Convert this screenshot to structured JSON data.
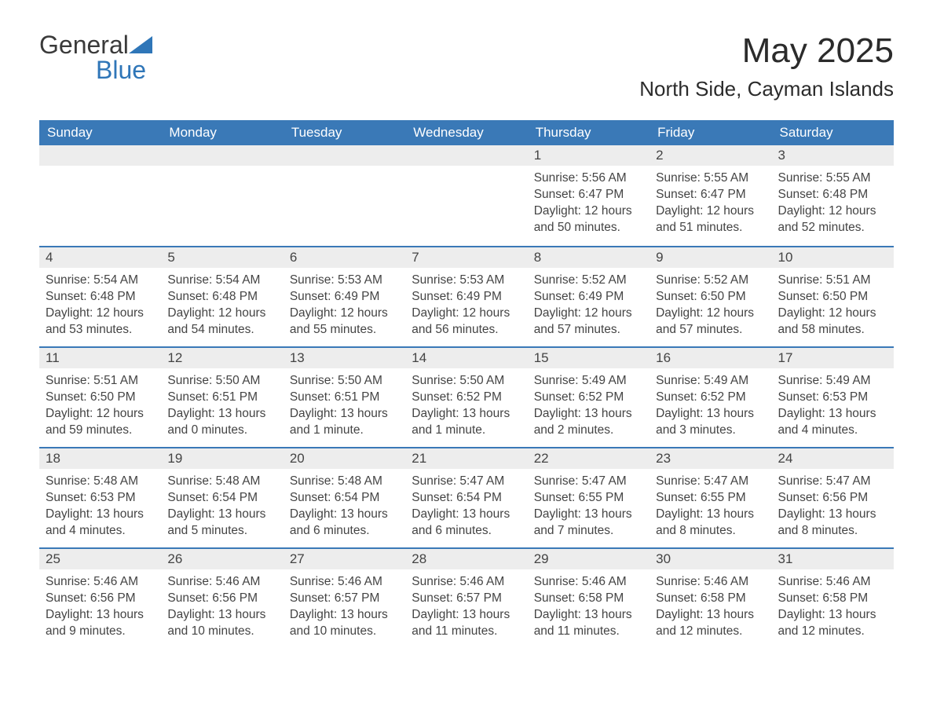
{
  "brand": {
    "word1": "General",
    "word2": "Blue"
  },
  "title": "May 2025",
  "location": "North Side, Cayman Islands",
  "colors": {
    "header_bg": "#3a79b7",
    "header_text": "#ffffff",
    "daynum_bg": "#ededed",
    "row_border": "#3a79b7",
    "body_text": "#444444",
    "page_bg": "#ffffff",
    "brand_gray": "#3a3a3a",
    "brand_blue": "#2f76b8"
  },
  "fonts": {
    "title_size_pt": 33,
    "location_size_pt": 20,
    "dow_size_pt": 13,
    "daynum_size_pt": 13,
    "body_size_pt": 12
  },
  "dow": [
    "Sunday",
    "Monday",
    "Tuesday",
    "Wednesday",
    "Thursday",
    "Friday",
    "Saturday"
  ],
  "weeks": [
    [
      null,
      null,
      null,
      null,
      {
        "n": "1",
        "sr": "Sunrise: 5:56 AM",
        "ss": "Sunset: 6:47 PM",
        "dl": "Daylight: 12 hours and 50 minutes."
      },
      {
        "n": "2",
        "sr": "Sunrise: 5:55 AM",
        "ss": "Sunset: 6:47 PM",
        "dl": "Daylight: 12 hours and 51 minutes."
      },
      {
        "n": "3",
        "sr": "Sunrise: 5:55 AM",
        "ss": "Sunset: 6:48 PM",
        "dl": "Daylight: 12 hours and 52 minutes."
      }
    ],
    [
      {
        "n": "4",
        "sr": "Sunrise: 5:54 AM",
        "ss": "Sunset: 6:48 PM",
        "dl": "Daylight: 12 hours and 53 minutes."
      },
      {
        "n": "5",
        "sr": "Sunrise: 5:54 AM",
        "ss": "Sunset: 6:48 PM",
        "dl": "Daylight: 12 hours and 54 minutes."
      },
      {
        "n": "6",
        "sr": "Sunrise: 5:53 AM",
        "ss": "Sunset: 6:49 PM",
        "dl": "Daylight: 12 hours and 55 minutes."
      },
      {
        "n": "7",
        "sr": "Sunrise: 5:53 AM",
        "ss": "Sunset: 6:49 PM",
        "dl": "Daylight: 12 hours and 56 minutes."
      },
      {
        "n": "8",
        "sr": "Sunrise: 5:52 AM",
        "ss": "Sunset: 6:49 PM",
        "dl": "Daylight: 12 hours and 57 minutes."
      },
      {
        "n": "9",
        "sr": "Sunrise: 5:52 AM",
        "ss": "Sunset: 6:50 PM",
        "dl": "Daylight: 12 hours and 57 minutes."
      },
      {
        "n": "10",
        "sr": "Sunrise: 5:51 AM",
        "ss": "Sunset: 6:50 PM",
        "dl": "Daylight: 12 hours and 58 minutes."
      }
    ],
    [
      {
        "n": "11",
        "sr": "Sunrise: 5:51 AM",
        "ss": "Sunset: 6:50 PM",
        "dl": "Daylight: 12 hours and 59 minutes."
      },
      {
        "n": "12",
        "sr": "Sunrise: 5:50 AM",
        "ss": "Sunset: 6:51 PM",
        "dl": "Daylight: 13 hours and 0 minutes."
      },
      {
        "n": "13",
        "sr": "Sunrise: 5:50 AM",
        "ss": "Sunset: 6:51 PM",
        "dl": "Daylight: 13 hours and 1 minute."
      },
      {
        "n": "14",
        "sr": "Sunrise: 5:50 AM",
        "ss": "Sunset: 6:52 PM",
        "dl": "Daylight: 13 hours and 1 minute."
      },
      {
        "n": "15",
        "sr": "Sunrise: 5:49 AM",
        "ss": "Sunset: 6:52 PM",
        "dl": "Daylight: 13 hours and 2 minutes."
      },
      {
        "n": "16",
        "sr": "Sunrise: 5:49 AM",
        "ss": "Sunset: 6:52 PM",
        "dl": "Daylight: 13 hours and 3 minutes."
      },
      {
        "n": "17",
        "sr": "Sunrise: 5:49 AM",
        "ss": "Sunset: 6:53 PM",
        "dl": "Daylight: 13 hours and 4 minutes."
      }
    ],
    [
      {
        "n": "18",
        "sr": "Sunrise: 5:48 AM",
        "ss": "Sunset: 6:53 PM",
        "dl": "Daylight: 13 hours and 4 minutes."
      },
      {
        "n": "19",
        "sr": "Sunrise: 5:48 AM",
        "ss": "Sunset: 6:54 PM",
        "dl": "Daylight: 13 hours and 5 minutes."
      },
      {
        "n": "20",
        "sr": "Sunrise: 5:48 AM",
        "ss": "Sunset: 6:54 PM",
        "dl": "Daylight: 13 hours and 6 minutes."
      },
      {
        "n": "21",
        "sr": "Sunrise: 5:47 AM",
        "ss": "Sunset: 6:54 PM",
        "dl": "Daylight: 13 hours and 6 minutes."
      },
      {
        "n": "22",
        "sr": "Sunrise: 5:47 AM",
        "ss": "Sunset: 6:55 PM",
        "dl": "Daylight: 13 hours and 7 minutes."
      },
      {
        "n": "23",
        "sr": "Sunrise: 5:47 AM",
        "ss": "Sunset: 6:55 PM",
        "dl": "Daylight: 13 hours and 8 minutes."
      },
      {
        "n": "24",
        "sr": "Sunrise: 5:47 AM",
        "ss": "Sunset: 6:56 PM",
        "dl": "Daylight: 13 hours and 8 minutes."
      }
    ],
    [
      {
        "n": "25",
        "sr": "Sunrise: 5:46 AM",
        "ss": "Sunset: 6:56 PM",
        "dl": "Daylight: 13 hours and 9 minutes."
      },
      {
        "n": "26",
        "sr": "Sunrise: 5:46 AM",
        "ss": "Sunset: 6:56 PM",
        "dl": "Daylight: 13 hours and 10 minutes."
      },
      {
        "n": "27",
        "sr": "Sunrise: 5:46 AM",
        "ss": "Sunset: 6:57 PM",
        "dl": "Daylight: 13 hours and 10 minutes."
      },
      {
        "n": "28",
        "sr": "Sunrise: 5:46 AM",
        "ss": "Sunset: 6:57 PM",
        "dl": "Daylight: 13 hours and 11 minutes."
      },
      {
        "n": "29",
        "sr": "Sunrise: 5:46 AM",
        "ss": "Sunset: 6:58 PM",
        "dl": "Daylight: 13 hours and 11 minutes."
      },
      {
        "n": "30",
        "sr": "Sunrise: 5:46 AM",
        "ss": "Sunset: 6:58 PM",
        "dl": "Daylight: 13 hours and 12 minutes."
      },
      {
        "n": "31",
        "sr": "Sunrise: 5:46 AM",
        "ss": "Sunset: 6:58 PM",
        "dl": "Daylight: 13 hours and 12 minutes."
      }
    ]
  ]
}
